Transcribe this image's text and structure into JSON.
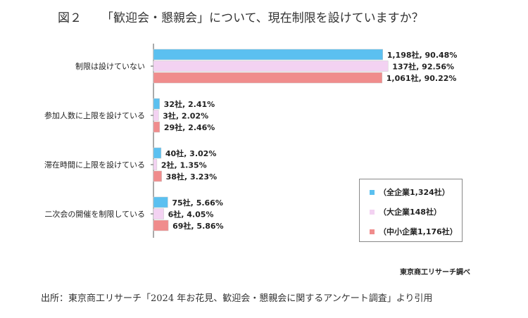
{
  "figure_number": "図２",
  "title": "「歓迎会・懇親会」について、現在制限を設けていますか？",
  "credit": "東京商工リサーチ調べ",
  "source": "出所：東京商工リサーチ「2024 年お花見、歓迎会・懇親会に関するアンケート調査」より引用",
  "colors": {
    "all": "#5bc0f0",
    "large": "#f3d2f2",
    "sme": "#f08c8c"
  },
  "chart_data": {
    "type": "bar",
    "orientation": "horizontal",
    "xlim": [
      0,
      100
    ],
    "unit": "%",
    "categories": [
      "制限は設けていない",
      "参加人数に上限を設けている",
      "滞在時間に上限を設けている",
      "二次会の開催を制限している"
    ],
    "series": [
      {
        "name": "（全企業1,324社）",
        "values": [
          90.48,
          2.41,
          3.02,
          5.66
        ],
        "labels": [
          "1,198社, 90.48%",
          "32社, 2.41%",
          "40社, 3.02%",
          "75社, 5.66%"
        ]
      },
      {
        "name": "（大企業148社）",
        "values": [
          92.56,
          2.02,
          1.35,
          4.05
        ],
        "labels": [
          "137社, 92.56%",
          "3社, 2.02%",
          "2社, 1.35%",
          "6社, 4.05%"
        ]
      },
      {
        "name": "（中小企業1,176社）",
        "values": [
          90.22,
          2.46,
          3.23,
          5.86
        ],
        "labels": [
          "1,061社, 90.22%",
          "29社, 2.46%",
          "38社, 3.23%",
          "69社, 5.86%"
        ]
      }
    ],
    "legend_position": "bottom-right",
    "grid": false
  }
}
